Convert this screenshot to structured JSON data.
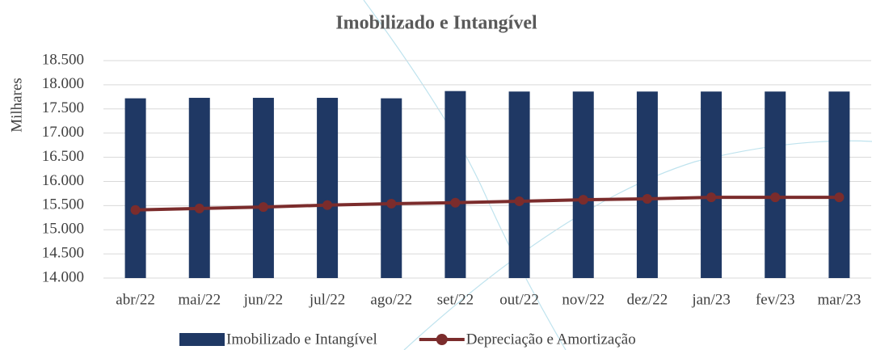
{
  "chart_data": {
    "type": "bar",
    "title": "Imobilizado e Intangível",
    "y_label": "Milhares",
    "categories": [
      "abr/22",
      "mai/22",
      "jun/22",
      "jul/22",
      "ago/22",
      "set/22",
      "out/22",
      "nov/22",
      "dez/22",
      "jan/23",
      "fev/23",
      "mar/23"
    ],
    "series": [
      {
        "name": "Imobilizado e Intangível",
        "type": "bar",
        "color": "#1f3864",
        "values": [
          17720,
          17730,
          17730,
          17730,
          17720,
          17870,
          17860,
          17860,
          17860,
          17860,
          17860,
          17860
        ]
      },
      {
        "name": "Depreciação e Amortização",
        "type": "line",
        "color": "#7b2c2c",
        "values": [
          15410,
          15440,
          15470,
          15510,
          15540,
          15560,
          15590,
          15620,
          15640,
          15670,
          15670,
          15670
        ]
      }
    ],
    "ylim": [
      14000,
      18500
    ],
    "yticks": [
      {
        "value": 14000,
        "label": "14.000"
      },
      {
        "value": 14500,
        "label": "14.500"
      },
      {
        "value": 15000,
        "label": "15.000"
      },
      {
        "value": 15500,
        "label": "15.500"
      },
      {
        "value": 16000,
        "label": "16.000"
      },
      {
        "value": 16500,
        "label": "16.500"
      },
      {
        "value": 17000,
        "label": "17.000"
      },
      {
        "value": 17500,
        "label": "17.500"
      },
      {
        "value": 18000,
        "label": "18.000"
      },
      {
        "value": 18500,
        "label": "18.500"
      }
    ],
    "grid": true,
    "legend": "bottom"
  }
}
